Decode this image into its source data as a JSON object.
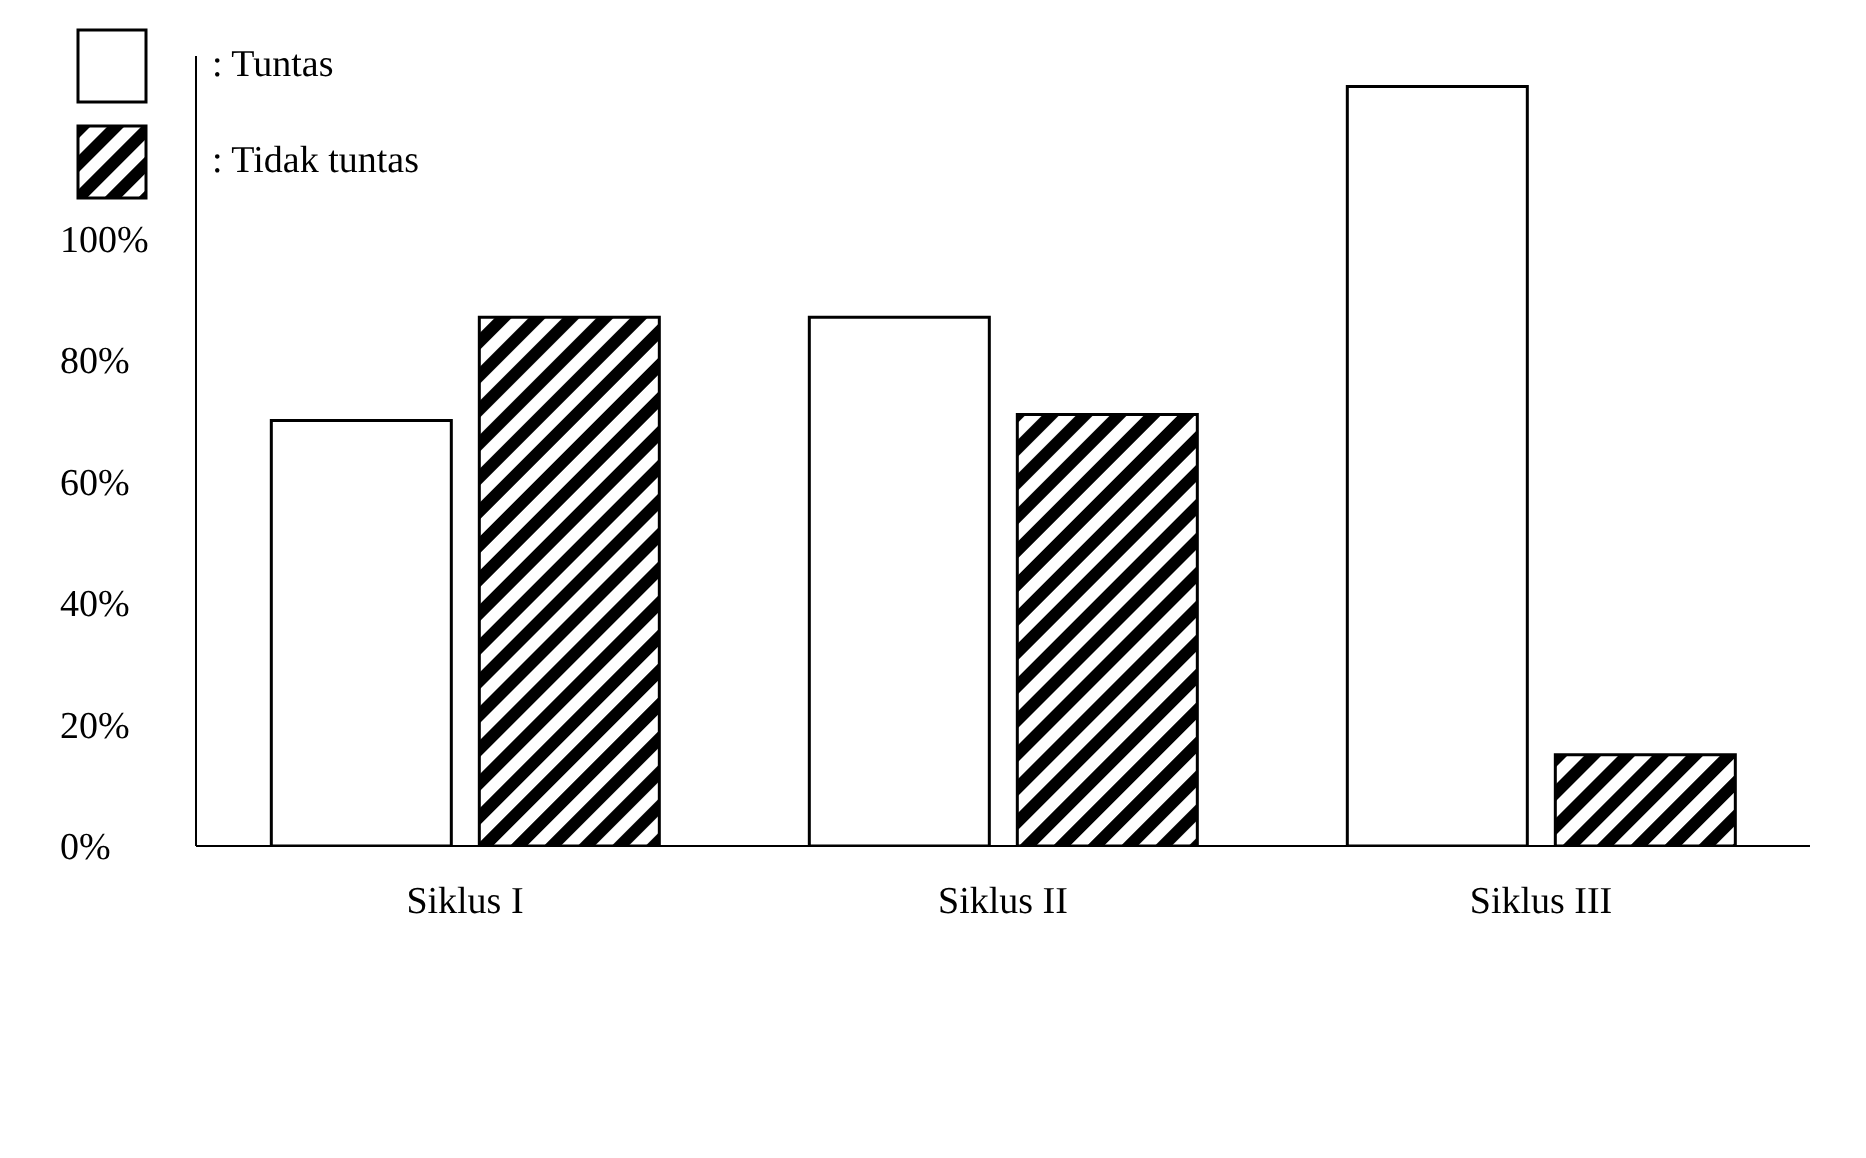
{
  "chart_data": {
    "type": "bar",
    "categories": [
      "Siklus I",
      "Siklus II",
      "Siklus III"
    ],
    "series": [
      {
        "name": ": Tuntas",
        "color": "#ffffff",
        "values": [
          70,
          87,
          125
        ]
      },
      {
        "name": ": Tidak tuntas",
        "color": "#000000",
        "values": [
          87,
          71,
          15
        ]
      }
    ],
    "ylim": [
      0,
      130
    ],
    "yticks": [
      {
        "value": 0,
        "label": "0%"
      },
      {
        "value": 20,
        "label": "20%"
      },
      {
        "value": 40,
        "label": "40%"
      },
      {
        "value": 60,
        "label": "60%"
      },
      {
        "value": 80,
        "label": "80%"
      },
      {
        "value": 100,
        "label": "100%"
      }
    ],
    "grid": false,
    "legend": "top left"
  }
}
